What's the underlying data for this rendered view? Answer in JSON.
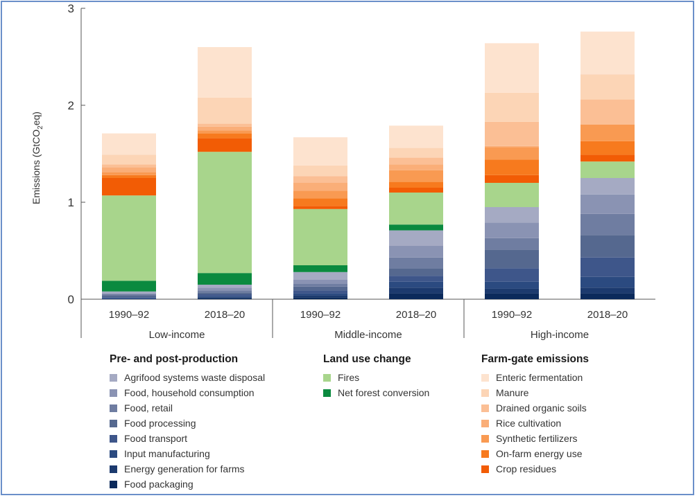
{
  "chart_data": {
    "type": "bar",
    "stacked": true,
    "ylabel_parts": [
      "Emissions (GtCO",
      "2",
      "eq)"
    ],
    "ylim": [
      0,
      3
    ],
    "yticks": [
      "0",
      "1",
      "2",
      "3"
    ],
    "groups": [
      {
        "label": "Low-income",
        "categories": [
          "1990–92",
          "2018–20"
        ]
      },
      {
        "label": "Middle-income",
        "categories": [
          "1990–92",
          "2018–20"
        ]
      },
      {
        "label": "High-income",
        "categories": [
          "1990–92",
          "2018–20"
        ]
      }
    ],
    "series": [
      {
        "name": "Food packaging",
        "color": "#0b2a5b",
        "values": [
          0.0,
          0.01,
          0.02,
          0.06,
          0.06,
          0.06
        ]
      },
      {
        "name": "Energy generation for farms",
        "color": "#1c3a6e",
        "values": [
          0.0,
          0.01,
          0.02,
          0.06,
          0.05,
          0.06
        ]
      },
      {
        "name": "Input manufacturing",
        "color": "#2b4a80",
        "values": [
          0.01,
          0.01,
          0.02,
          0.06,
          0.07,
          0.11
        ]
      },
      {
        "name": "Food transport",
        "color": "#3e568a",
        "values": [
          0.01,
          0.02,
          0.03,
          0.06,
          0.14,
          0.2
        ]
      },
      {
        "name": "Food processing",
        "color": "#55688f",
        "values": [
          0.02,
          0.02,
          0.04,
          0.08,
          0.19,
          0.23
        ]
      },
      {
        "name": "Food, retail",
        "color": "#6f7da1",
        "values": [
          0.01,
          0.02,
          0.03,
          0.11,
          0.12,
          0.22
        ]
      },
      {
        "name": "Food, household consumption",
        "color": "#8a93b3",
        "values": [
          0.01,
          0.03,
          0.04,
          0.12,
          0.16,
          0.2
        ]
      },
      {
        "name": "Agrifood systems waste disposal",
        "color": "#a5aac3",
        "values": [
          0.02,
          0.03,
          0.08,
          0.16,
          0.16,
          0.17
        ]
      },
      {
        "name": "Net forest conversion",
        "color": "#0a8a3f",
        "values": [
          0.11,
          0.12,
          0.07,
          0.06,
          0.0,
          0.0
        ]
      },
      {
        "name": "Fires",
        "color": "#a8d58c",
        "values": [
          0.88,
          1.25,
          0.58,
          0.33,
          0.25,
          0.17
        ]
      },
      {
        "name": "Crop residues",
        "color": "#f25c05",
        "values": [
          0.18,
          0.14,
          0.03,
          0.05,
          0.08,
          0.07
        ]
      },
      {
        "name": "On-farm energy use",
        "color": "#f77a1e",
        "values": [
          0.03,
          0.05,
          0.08,
          0.06,
          0.16,
          0.14
        ]
      },
      {
        "name": "Synthetic fertilizers",
        "color": "#f99a52",
        "values": [
          0.03,
          0.03,
          0.08,
          0.12,
          0.13,
          0.17
        ]
      },
      {
        "name": "Rice cultivation",
        "color": "#faae78",
        "values": [
          0.05,
          0.04,
          0.08,
          0.06,
          0.01,
          0.0
        ]
      },
      {
        "name": "Drained organic soils",
        "color": "#fbbf95",
        "values": [
          0.03,
          0.03,
          0.07,
          0.07,
          0.25,
          0.26
        ]
      },
      {
        "name": "Manure",
        "color": "#fcd5b6",
        "values": [
          0.1,
          0.27,
          0.11,
          0.1,
          0.3,
          0.26
        ]
      },
      {
        "name": "Enteric fermentation",
        "color": "#fde3cf",
        "values": [
          0.22,
          0.52,
          0.29,
          0.23,
          0.51,
          0.44
        ]
      }
    ]
  },
  "legend": {
    "pre_post": {
      "title": "Pre- and post-production",
      "items": [
        {
          "label": "Agrifood systems waste disposal",
          "color": "#a5aac3"
        },
        {
          "label": "Food, household consumption",
          "color": "#8a93b3"
        },
        {
          "label": "Food, retail",
          "color": "#6f7da1"
        },
        {
          "label": "Food processing",
          "color": "#55688f"
        },
        {
          "label": "Food transport",
          "color": "#3e568a"
        },
        {
          "label": "Input manufacturing",
          "color": "#2b4a80"
        },
        {
          "label": "Energy generation for farms",
          "color": "#1c3a6e"
        },
        {
          "label": "Food packaging",
          "color": "#0b2a5b"
        }
      ]
    },
    "land_use": {
      "title": "Land use change",
      "items": [
        {
          "label": "Fires",
          "color": "#a8d58c"
        },
        {
          "label": "Net forest conversion",
          "color": "#0a8a3f"
        }
      ]
    },
    "farm_gate": {
      "title": "Farm-gate emissions",
      "items": [
        {
          "label": "Enteric fermentation",
          "color": "#fde3cf"
        },
        {
          "label": "Manure",
          "color": "#fcd5b6"
        },
        {
          "label": "Drained organic soils",
          "color": "#fbbf95"
        },
        {
          "label": "Rice cultivation",
          "color": "#faae78"
        },
        {
          "label": "Synthetic fertilizers",
          "color": "#f99a52"
        },
        {
          "label": "On-farm energy use",
          "color": "#f77a1e"
        },
        {
          "label": "Crop residues",
          "color": "#f25c05"
        }
      ]
    }
  }
}
